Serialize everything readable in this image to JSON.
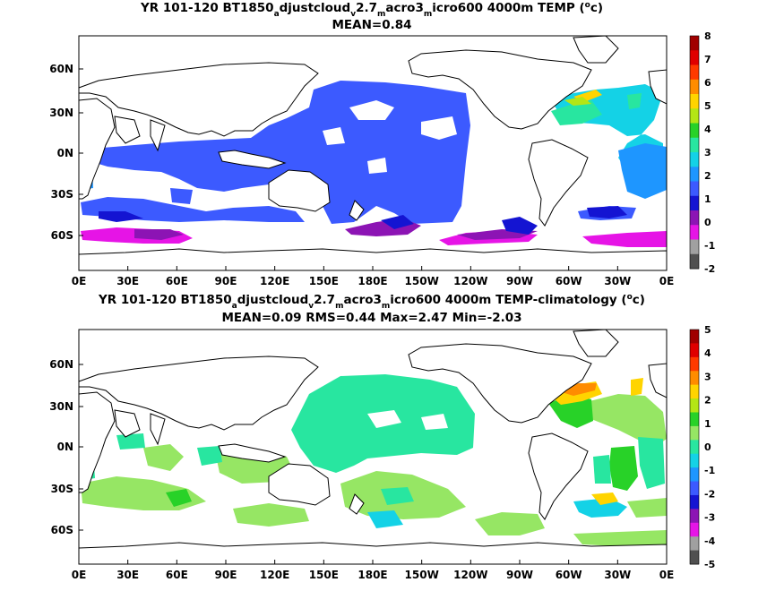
{
  "panels": [
    {
      "title_parts": [
        "YR 101-120 BT1850",
        "a",
        "djustcloud",
        "v",
        "2.7",
        "m",
        "acro3",
        "m",
        "icro600 4000m TEMP (",
        "o",
        "c)"
      ],
      "subtitle": "MEAN=0.84",
      "lat_labels": [
        "60N",
        "30N",
        "0N",
        "30S",
        "60S"
      ],
      "lon_labels": [
        "0E",
        "30E",
        "60E",
        "90E",
        "120E",
        "150E",
        "180E",
        "150W",
        "120W",
        "90W",
        "60W",
        "30W",
        "0E"
      ],
      "colorbar": {
        "labels": [
          "8",
          "7",
          "6",
          "5",
          "4",
          "3",
          "2",
          "1",
          "0",
          "-1",
          "-2"
        ],
        "colors": [
          "#a00000",
          "#e00000",
          "#ff3a00",
          "#ff8c00",
          "#ffd400",
          "#b4e614",
          "#28d228",
          "#28e6a0",
          "#14d2e6",
          "#1e96ff",
          "#3c5aff",
          "#1414d2",
          "#8c14b4",
          "#e614e6",
          "#a0a0a0",
          "#505050"
        ]
      }
    },
    {
      "title_parts": [
        "YR 101-120 BT1850",
        "a",
        "djustcloud",
        "v",
        "2.7",
        "m",
        "acro3",
        "m",
        "icro600 4000m TEMP-climatology (",
        "o",
        "c)"
      ],
      "subtitle": "MEAN=0.09   RMS=0.44   Max=2.47   Min=-2.03",
      "lat_labels": [
        "60N",
        "30N",
        "0N",
        "30S",
        "60S"
      ],
      "lon_labels": [
        "0E",
        "30E",
        "60E",
        "90E",
        "120E",
        "150E",
        "180E",
        "150W",
        "120W",
        "90W",
        "60W",
        "30W",
        "0E"
      ],
      "colorbar": {
        "labels": [
          "5",
          "4",
          "3",
          "2",
          "1",
          "0",
          "-1",
          "-2",
          "-3",
          "-4",
          "-5"
        ],
        "colors": [
          "#a00000",
          "#e00000",
          "#ff3a00",
          "#ff8c00",
          "#ffd400",
          "#b4e614",
          "#28d228",
          "#96e664",
          "#28e6a0",
          "#14d2e6",
          "#1e96ff",
          "#3c5aff",
          "#1414d2",
          "#8c14b4",
          "#e614e6",
          "#a0a0a0",
          "#505050"
        ]
      }
    }
  ]
}
